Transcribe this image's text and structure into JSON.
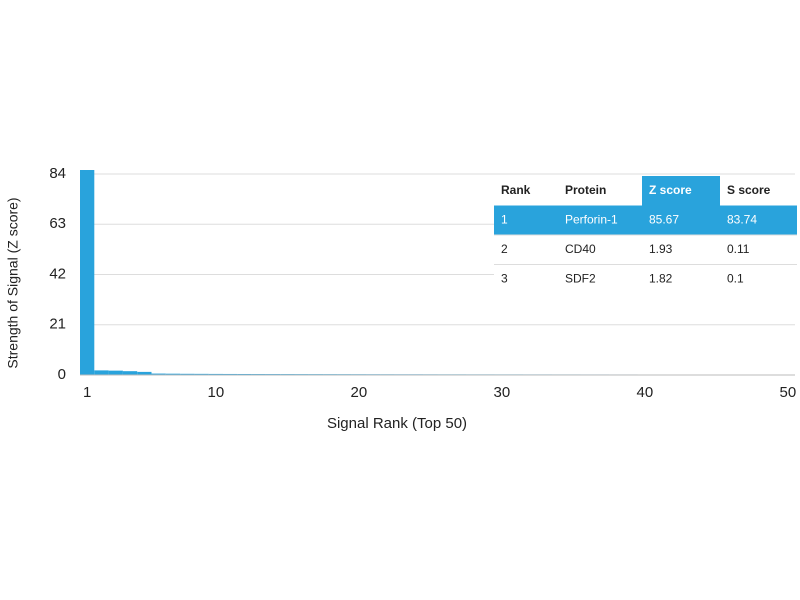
{
  "chart_data": {
    "type": "bar",
    "xlabel": "Signal Rank (Top 50)",
    "ylabel": "Strength of Signal (Z score)",
    "x": [
      1,
      2,
      3,
      4,
      5,
      6,
      7,
      8,
      9,
      10,
      11,
      12,
      13,
      14,
      15,
      16,
      17,
      18,
      19,
      20,
      21,
      22,
      23,
      24,
      25,
      26,
      27,
      28,
      29,
      30,
      31,
      32,
      33,
      34,
      35,
      36,
      37,
      38,
      39,
      40,
      41,
      42,
      43,
      44,
      45,
      46,
      47,
      48,
      49,
      50
    ],
    "values": [
      85.67,
      1.93,
      1.82,
      1.6,
      1.3,
      0.6,
      0.55,
      0.5,
      0.48,
      0.45,
      0.43,
      0.42,
      0.4,
      0.39,
      0.38,
      0.37,
      0.36,
      0.35,
      0.34,
      0.33,
      0.32,
      0.31,
      0.3,
      0.3,
      0.29,
      0.28,
      0.28,
      0.27,
      0.27,
      0.26,
      0.26,
      0.25,
      0.25,
      0.24,
      0.24,
      0.23,
      0.23,
      0.22,
      0.22,
      0.21,
      0.21,
      0.2,
      0.2,
      0.2,
      0.19,
      0.19,
      0.18,
      0.18,
      0.17,
      0.17
    ],
    "color": "#29a3dc",
    "xlim": [
      0.5,
      50.5
    ],
    "xticks": [
      1,
      10,
      20,
      30,
      40,
      50
    ],
    "ylim": [
      0,
      84
    ],
    "yticks": [
      0,
      21,
      42,
      63,
      84
    ],
    "grid": true,
    "table": {
      "columns": [
        "Rank",
        "Protein",
        "Z score",
        "S score"
      ],
      "highlight_column": 2,
      "highlight_row": 0,
      "highlight_color": "#29a3dc",
      "rows": [
        [
          "1",
          "Perforin-1",
          "85.67",
          "83.74"
        ],
        [
          "2",
          "CD40",
          "1.93",
          "0.11"
        ],
        [
          "3",
          "SDF2",
          "1.82",
          "0.1"
        ]
      ]
    }
  }
}
